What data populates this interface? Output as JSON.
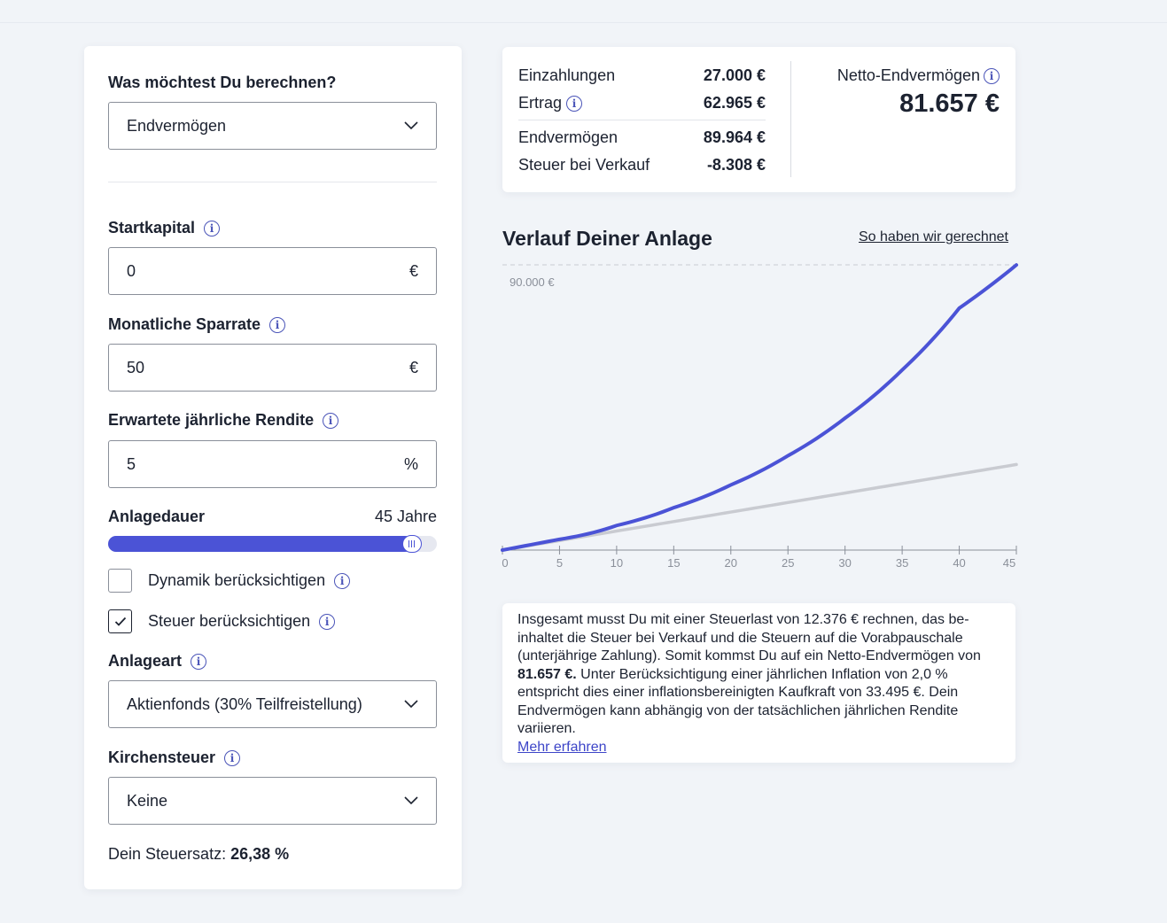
{
  "form": {
    "calc_question": "Was möchtest Du berechnen?",
    "calc_select": "Endvermögen",
    "startkapital_label": "Startkapital",
    "startkapital_value": "0",
    "startkapital_unit": "€",
    "sparrate_label": "Monatliche Sparrate",
    "sparrate_value": "50",
    "sparrate_unit": "€",
    "rendite_label": "Erwartete jährliche Rendite",
    "rendite_value": "5",
    "rendite_unit": "%",
    "anlagedauer_label": "Anlagedauer",
    "anlagedauer_value": "45 Jahre",
    "anlagedauer_fraction": 0.9,
    "dynamik_label": "Dynamik berücksichtigen",
    "dynamik_checked": false,
    "steuer_label": "Steuer berücksichtigen",
    "steuer_checked": true,
    "anlageart_label": "Anlageart",
    "anlageart_select": "Aktienfonds (30% Teilfreistellung)",
    "kirchensteuer_label": "Kirchensteuer",
    "kirchensteuer_select": "Keine",
    "steuersatz_label": "Dein Steuersatz:",
    "steuersatz_value": "26,38 %"
  },
  "summary": {
    "einzahlungen_label": "Einzahlungen",
    "einzahlungen_value": "27.000 €",
    "ertrag_label": "Ertrag",
    "ertrag_value": "62.965 €",
    "endvermoegen_label": "Endvermögen",
    "endvermoegen_value": "89.964 €",
    "steuer_label": "Steuer bei Verkauf",
    "steuer_value": "-8.308 €",
    "netto_label": "Netto-Endvermögen",
    "netto_value": "81.657 €"
  },
  "chart": {
    "title": "Verlauf Deiner Anlage",
    "link": "So haben wir gerechnet",
    "y_max_label": "90.000 €"
  },
  "chart_data": {
    "type": "line",
    "x": [
      0,
      5,
      10,
      15,
      20,
      25,
      30,
      35,
      40,
      45
    ],
    "x_ticks": [
      "0",
      "5",
      "10",
      "15",
      "20",
      "25",
      "30",
      "35",
      "40",
      "45"
    ],
    "ylim": [
      0,
      90000
    ],
    "y_tick_labels": [
      "90.000 €"
    ],
    "series": [
      {
        "values": [
          0,
          3400,
          7760,
          13380,
          20570,
          29780,
          41640,
          56830,
          76330,
          89964
        ],
        "color": "#4b53d6"
      },
      {
        "values": [
          0,
          3000,
          6000,
          9000,
          12000,
          15000,
          18000,
          21000,
          24000,
          27000
        ],
        "color": "#c9cbd1"
      }
    ]
  },
  "info": {
    "text_1": "Insgesamt musst Du mit einer Steuerlast von 12.376 € rechnen, das be-inhaltet die Steuer bei Verkauf und die Steuern auf die Vorabpauschale (unterjährige Zahlung). Somit kommst Du auf ein Netto-Endvermögen von ",
    "text_bold": "81.657 €.",
    "text_2": " Unter Berücksichtigung einer jährlichen Inflation von 2,0 % entspricht dies einer inflationsbereinigten Kaufkraft von 33.495 €. Dein Endvermögen kann abhängig von der tatsächlichen jährlichen Rendite variieren.",
    "link": "Mehr erfahren"
  },
  "colors": {
    "accent": "#4b53d6",
    "baseline": "#c9cbd1",
    "info_icon": "#4a54b8"
  }
}
